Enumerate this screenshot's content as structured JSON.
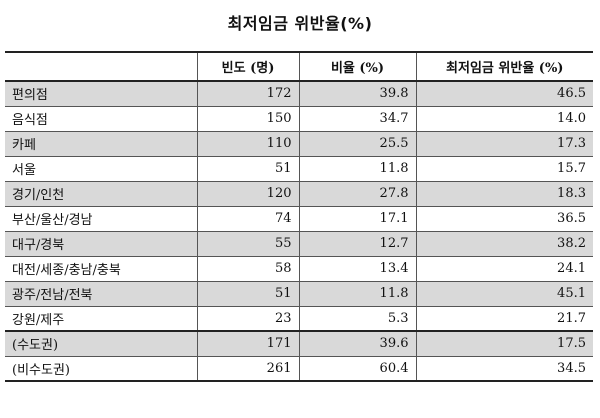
{
  "title": "최저임금 위반율(%)",
  "table": {
    "headers": [
      "",
      "빈도 (명)",
      "비율 (%)",
      "최저임금 위반율 (%)"
    ],
    "rows": [
      {
        "label": "편의점",
        "freq": "172",
        "ratio": "39.8",
        "violation": "46.5"
      },
      {
        "label": "음식점",
        "freq": "150",
        "ratio": "34.7",
        "violation": "14.0"
      },
      {
        "label": "카페",
        "freq": "110",
        "ratio": "25.5",
        "violation": "17.3"
      },
      {
        "label": "서울",
        "freq": "51",
        "ratio": "11.8",
        "violation": "15.7"
      },
      {
        "label": "경기/인천",
        "freq": "120",
        "ratio": "27.8",
        "violation": "18.3"
      },
      {
        "label": "부산/울산/경남",
        "freq": "74",
        "ratio": "17.1",
        "violation": "36.5"
      },
      {
        "label": "대구/경북",
        "freq": "55",
        "ratio": "12.7",
        "violation": "38.2"
      },
      {
        "label": "대전/세종/충남/충북",
        "freq": "58",
        "ratio": "13.4",
        "violation": "24.1"
      },
      {
        "label": "광주/전남/전북",
        "freq": "51",
        "ratio": "11.8",
        "violation": "45.1"
      },
      {
        "label": "강원/제주",
        "freq": "23",
        "ratio": "5.3",
        "violation": "21.7"
      },
      {
        "label": "(수도권)",
        "freq": "171",
        "ratio": "39.6",
        "violation": "17.5"
      },
      {
        "label": "(비수도권)",
        "freq": "261",
        "ratio": "60.4",
        "violation": "34.5"
      }
    ]
  }
}
